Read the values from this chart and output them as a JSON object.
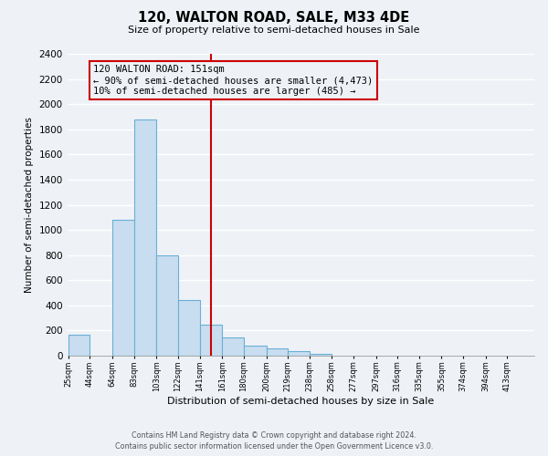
{
  "title": "120, WALTON ROAD, SALE, M33 4DE",
  "subtitle": "Size of property relative to semi-detached houses in Sale",
  "xlabel": "Distribution of semi-detached houses by size in Sale",
  "ylabel": "Number of semi-detached properties",
  "footer_line1": "Contains HM Land Registry data © Crown copyright and database right 2024.",
  "footer_line2": "Contains public sector information licensed under the Open Government Licence v3.0.",
  "bar_color": "#c8ddef",
  "bar_edge_color": "#6aafd6",
  "background_color": "#eef2f7",
  "grid_color": "#ffffff",
  "annotation_box_edge": "#cc0000",
  "property_line_color": "#cc0000",
  "bin_labels": [
    "25sqm",
    "44sqm",
    "64sqm",
    "83sqm",
    "103sqm",
    "122sqm",
    "141sqm",
    "161sqm",
    "180sqm",
    "200sqm",
    "219sqm",
    "238sqm",
    "258sqm",
    "277sqm",
    "297sqm",
    "316sqm",
    "335sqm",
    "355sqm",
    "374sqm",
    "394sqm",
    "413sqm"
  ],
  "bin_left_edges": [
    25,
    44,
    64,
    83,
    103,
    122,
    141,
    161,
    180,
    200,
    219,
    238,
    258,
    277,
    297,
    316,
    335,
    355,
    374,
    394,
    413
  ],
  "bin_widths": [
    19,
    20,
    19,
    20,
    19,
    19,
    20,
    19,
    20,
    19,
    19,
    20,
    19,
    20,
    19,
    19,
    20,
    19,
    20,
    19,
    19
  ],
  "bar_heights": [
    170,
    0,
    1080,
    1880,
    800,
    440,
    248,
    145,
    80,
    60,
    35,
    15,
    0,
    0,
    0,
    0,
    0,
    0,
    0,
    0,
    0
  ],
  "ylim": [
    0,
    2400
  ],
  "yticks": [
    0,
    200,
    400,
    600,
    800,
    1000,
    1200,
    1400,
    1600,
    1800,
    2000,
    2200,
    2400
  ],
  "property_value": 151,
  "annotation_title": "120 WALTON ROAD: 151sqm",
  "annotation_line1": "← 90% of semi-detached houses are smaller (4,473)",
  "annotation_line2": "10% of semi-detached houses are larger (485) →"
}
